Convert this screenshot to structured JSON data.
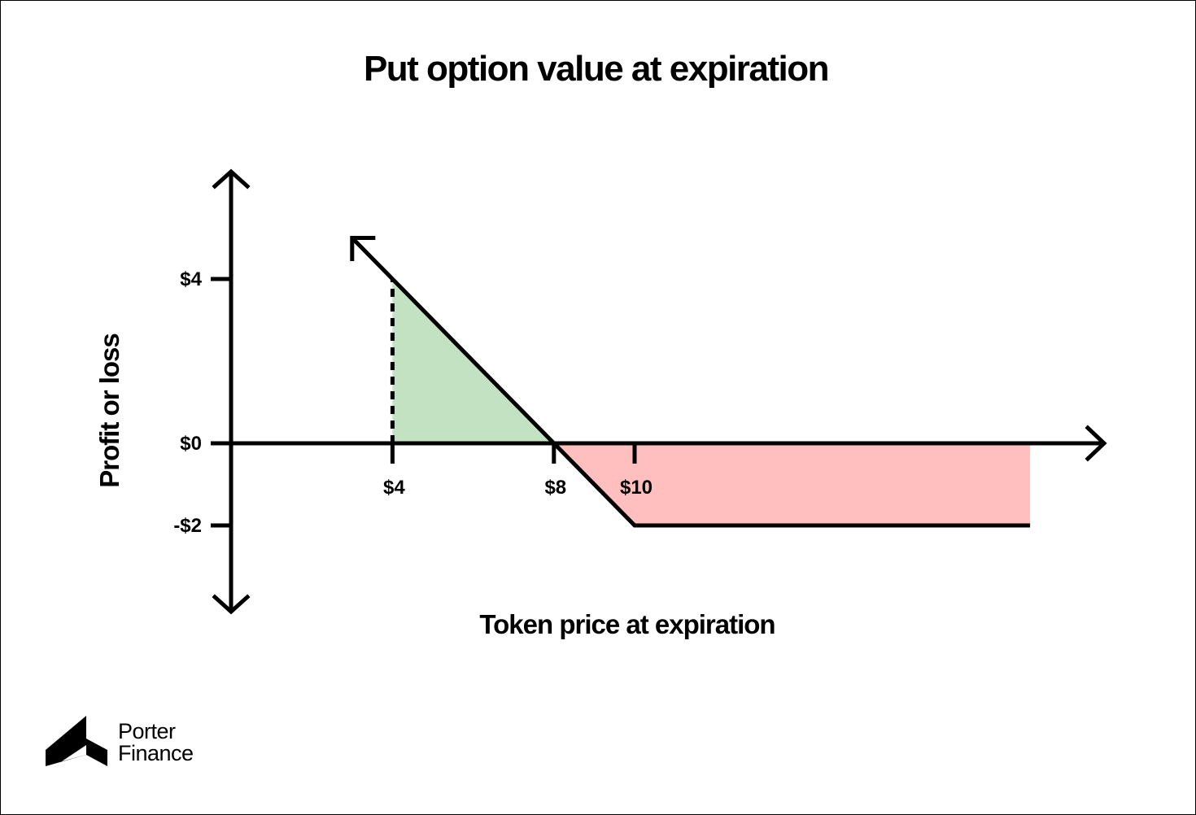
{
  "colors": {
    "profit_fill": "#c3e2c2",
    "loss_fill": "#ffbfbf",
    "line": "#000000",
    "background": "#ffffff"
  },
  "chart_data": {
    "type": "line",
    "title": "Put option value at expiration",
    "xlabel": "Token price at expiration",
    "ylabel": "Profit or loss",
    "x_ticks": [
      {
        "value": 4,
        "label": "$4"
      },
      {
        "value": 8,
        "label": "$8"
      },
      {
        "value": 10,
        "label": "$10"
      }
    ],
    "y_ticks": [
      {
        "value": 4,
        "label": "$4"
      },
      {
        "value": 0,
        "label": "$0"
      },
      {
        "value": -2,
        "label": "-$2"
      }
    ],
    "series": [
      {
        "x": [
          3,
          4,
          8,
          10,
          19.8
        ],
        "y": [
          5,
          4,
          0,
          -2,
          -2
        ]
      }
    ],
    "profit_region": {
      "x": [
        4,
        8
      ],
      "y_at_x": [
        4,
        0
      ]
    },
    "loss_region": {
      "x": [
        8,
        19.8
      ],
      "floor": -2
    },
    "reference_line": {
      "x": 4,
      "y_from": 0,
      "y_to": 4,
      "style": "dashed"
    },
    "grid": false,
    "legend": "none"
  },
  "logo": {
    "line1": "Porter",
    "line2": "Finance"
  }
}
